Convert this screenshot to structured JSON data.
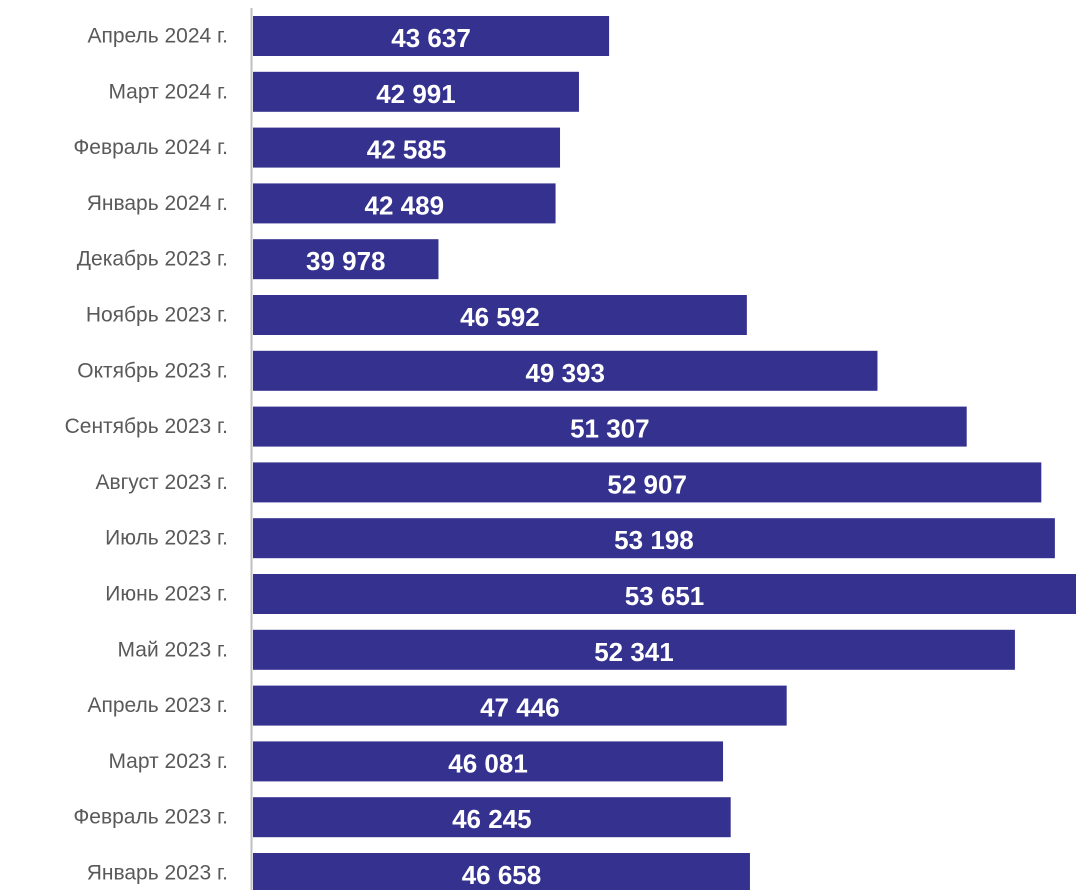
{
  "chart_data": {
    "type": "bar",
    "orientation": "horizontal",
    "categories": [
      "Апрель 2024 г.",
      "Март 2024 г.",
      "Февраль 2024 г.",
      "Январь 2024 г.",
      "Декабрь 2023 г.",
      "Ноябрь 2023 г.",
      "Октябрь 2023 г.",
      "Сентябрь 2023 г.",
      "Август 2023 г.",
      "Июль 2023 г.",
      "Июнь 2023 г.",
      "Май 2023 г.",
      "Апрель 2023 г.",
      "Март 2023 г.",
      "Февраль 2023 г.",
      "Январь 2023 г."
    ],
    "values": [
      43637,
      42991,
      42585,
      42489,
      39978,
      46592,
      49393,
      51307,
      52907,
      53198,
      53651,
      52341,
      47446,
      46081,
      46245,
      46658
    ],
    "data_labels": [
      "43 637",
      "42 991",
      "42 585",
      "42 489",
      "39 978",
      "46 592",
      "49 393",
      "51 307",
      "52 907",
      "53 198",
      "53 651",
      "52 341",
      "47 446",
      "46 081",
      "46 245",
      "46 658"
    ],
    "xlim": [
      36000,
      53651
    ],
    "bar_color": "#35328f",
    "label_color": "#595959",
    "value_label_color": "#ffffff",
    "axis_color": "#bfbfbf",
    "title": "",
    "xlabel": "",
    "ylabel": "",
    "grid": false,
    "legend": "none"
  }
}
